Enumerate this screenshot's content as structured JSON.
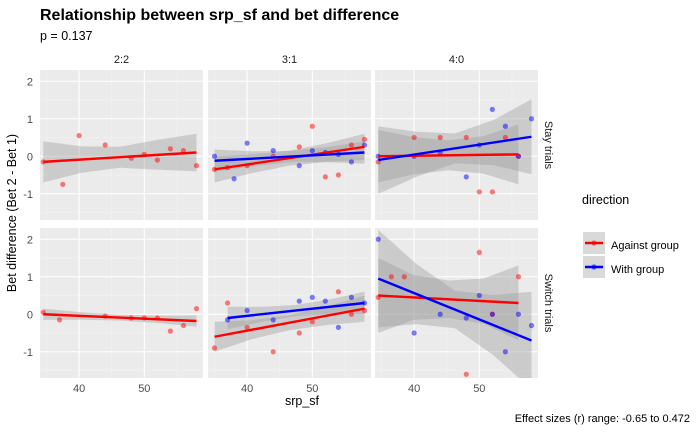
{
  "chart_data": {
    "type": "scatter",
    "title": "Relationship between srp_sf and bet difference",
    "subtitle": "p = 0.137",
    "xlabel": "srp_sf",
    "ylabel": "Bet difference (Bet 2 - Bet 1)",
    "caption": "Effect sizes (r) range: -0.65 to 0.472",
    "xlim": [
      34,
      59
    ],
    "ylim": [
      -1.7,
      2.3
    ],
    "x_ticks": [
      40,
      50
    ],
    "y_ticks": [
      -1,
      0,
      1,
      2
    ],
    "grid": true,
    "legend": {
      "title": "direction",
      "position": "right",
      "entries": [
        {
          "label": "Against group",
          "color": "#ff0000"
        },
        {
          "label": "With group",
          "color": "#0000ff"
        }
      ]
    },
    "columns": [
      "2:2",
      "3:1",
      "4:0"
    ],
    "rows": [
      "Stay trials",
      "Switch trials"
    ],
    "panels": [
      {
        "column": "2:2",
        "row": "Stay trials",
        "points": [
          {
            "d": "against",
            "x": 34.5,
            "y": -0.15
          },
          {
            "d": "against",
            "x": 37.5,
            "y": -0.75
          },
          {
            "d": "against",
            "x": 40,
            "y": 0.55
          },
          {
            "d": "against",
            "x": 44,
            "y": 0.3
          },
          {
            "d": "against",
            "x": 48,
            "y": -0.05
          },
          {
            "d": "against",
            "x": 50,
            "y": 0.05
          },
          {
            "d": "against",
            "x": 52,
            "y": -0.1
          },
          {
            "d": "against",
            "x": 54,
            "y": 0.2
          },
          {
            "d": "against",
            "x": 56,
            "y": 0.15
          },
          {
            "d": "against",
            "x": 58,
            "y": -0.25
          }
        ],
        "fits": [
          {
            "d": "against",
            "x": [
              34.5,
              58
            ],
            "y": [
              -0.15,
              0.1
            ],
            "band": [
              0.55,
              0.35,
              0.28,
              0.4,
              0.5
            ]
          }
        ]
      },
      {
        "column": "3:1",
        "row": "Stay trials",
        "points": [
          {
            "d": "against",
            "x": 35,
            "y": -0.35
          },
          {
            "d": "against",
            "x": 37,
            "y": -0.3
          },
          {
            "d": "against",
            "x": 40,
            "y": -0.25
          },
          {
            "d": "against",
            "x": 44,
            "y": 0.0
          },
          {
            "d": "against",
            "x": 48,
            "y": 0.25
          },
          {
            "d": "against",
            "x": 50,
            "y": 0.8
          },
          {
            "d": "against",
            "x": 52,
            "y": -0.55
          },
          {
            "d": "against",
            "x": 54,
            "y": -0.5
          },
          {
            "d": "against",
            "x": 56,
            "y": 0.3
          },
          {
            "d": "against",
            "x": 58,
            "y": 0.45
          },
          {
            "d": "with",
            "x": 35,
            "y": 0.0
          },
          {
            "d": "with",
            "x": 38,
            "y": -0.6
          },
          {
            "d": "with",
            "x": 40,
            "y": 0.35
          },
          {
            "d": "with",
            "x": 44,
            "y": 0.15
          },
          {
            "d": "with",
            "x": 48,
            "y": -0.25
          },
          {
            "d": "with",
            "x": 50,
            "y": 0.15
          },
          {
            "d": "with",
            "x": 52,
            "y": 0.1
          },
          {
            "d": "with",
            "x": 54,
            "y": 0.05
          },
          {
            "d": "with",
            "x": 56,
            "y": -0.15
          },
          {
            "d": "with",
            "x": 58,
            "y": 0.3
          }
        ],
        "fits": [
          {
            "d": "against",
            "x": [
              35,
              58
            ],
            "y": [
              -0.35,
              0.25
            ],
            "band": [
              0.35,
              0.25,
              0.2,
              0.25,
              0.35
            ]
          },
          {
            "d": "with",
            "x": [
              35,
              58
            ],
            "y": [
              -0.12,
              0.1
            ],
            "band": [
              0.3,
              0.2,
              0.15,
              0.2,
              0.3
            ]
          }
        ]
      },
      {
        "column": "4:0",
        "row": "Stay trials",
        "points": [
          {
            "d": "against",
            "x": 34.5,
            "y": -0.15
          },
          {
            "d": "against",
            "x": 40,
            "y": 0.5
          },
          {
            "d": "against",
            "x": 44,
            "y": 0.5
          },
          {
            "d": "against",
            "x": 48,
            "y": 0.5
          },
          {
            "d": "against",
            "x": 50,
            "y": -0.95
          },
          {
            "d": "against",
            "x": 52,
            "y": -0.95
          },
          {
            "d": "against",
            "x": 54,
            "y": 0.5
          },
          {
            "d": "against",
            "x": 56,
            "y": 0.0
          },
          {
            "d": "with",
            "x": 34.5,
            "y": 0.0
          },
          {
            "d": "with",
            "x": 40,
            "y": 0.0
          },
          {
            "d": "with",
            "x": 44,
            "y": 0.1
          },
          {
            "d": "with",
            "x": 48,
            "y": -0.55
          },
          {
            "d": "with",
            "x": 50,
            "y": 0.3
          },
          {
            "d": "with",
            "x": 52,
            "y": 1.25
          },
          {
            "d": "with",
            "x": 54,
            "y": 0.8
          },
          {
            "d": "with",
            "x": 56,
            "y": 0.0
          },
          {
            "d": "with",
            "x": 58,
            "y": 1.0
          }
        ],
        "fits": [
          {
            "d": "against",
            "x": [
              34.5,
              56
            ],
            "y": [
              0.0,
              0.05
            ],
            "band": [
              0.7,
              0.5,
              0.4,
              0.5,
              0.8
            ]
          },
          {
            "d": "with",
            "x": [
              34.5,
              58
            ],
            "y": [
              -0.1,
              0.52
            ],
            "band": [
              0.9,
              0.6,
              0.4,
              0.6,
              1.0
            ]
          }
        ]
      },
      {
        "column": "2:2",
        "row": "Switch trials",
        "points": [
          {
            "d": "against",
            "x": 34.5,
            "y": 0.05
          },
          {
            "d": "against",
            "x": 37,
            "y": -0.15
          },
          {
            "d": "against",
            "x": 44,
            "y": -0.05
          },
          {
            "d": "against",
            "x": 48,
            "y": -0.1
          },
          {
            "d": "against",
            "x": 50,
            "y": -0.1
          },
          {
            "d": "against",
            "x": 52,
            "y": -0.1
          },
          {
            "d": "against",
            "x": 54,
            "y": -0.45
          },
          {
            "d": "against",
            "x": 56,
            "y": -0.3
          },
          {
            "d": "against",
            "x": 58,
            "y": 0.15
          }
        ],
        "fits": [
          {
            "d": "against",
            "x": [
              34.5,
              58
            ],
            "y": [
              0.0,
              -0.18
            ],
            "band": [
              0.15,
              0.1,
              0.08,
              0.1,
              0.15
            ]
          }
        ]
      },
      {
        "column": "3:1",
        "row": "Switch trials",
        "points": [
          {
            "d": "against",
            "x": 35,
            "y": -0.9
          },
          {
            "d": "against",
            "x": 37,
            "y": 0.3
          },
          {
            "d": "against",
            "x": 40,
            "y": -0.35
          },
          {
            "d": "against",
            "x": 44,
            "y": -1.0
          },
          {
            "d": "against",
            "x": 48,
            "y": -0.5
          },
          {
            "d": "against",
            "x": 50,
            "y": -0.2
          },
          {
            "d": "against",
            "x": 54,
            "y": 0.6
          },
          {
            "d": "against",
            "x": 56,
            "y": 0.0
          },
          {
            "d": "against",
            "x": 58,
            "y": 0.1
          },
          {
            "d": "with",
            "x": 37,
            "y": -0.15
          },
          {
            "d": "with",
            "x": 40,
            "y": 0.1
          },
          {
            "d": "with",
            "x": 44,
            "y": -0.15
          },
          {
            "d": "with",
            "x": 48,
            "y": 0.35
          },
          {
            "d": "with",
            "x": 50,
            "y": 0.45
          },
          {
            "d": "with",
            "x": 52,
            "y": 0.35
          },
          {
            "d": "with",
            "x": 54,
            "y": -0.35
          },
          {
            "d": "with",
            "x": 56,
            "y": 0.45
          },
          {
            "d": "with",
            "x": 58,
            "y": 0.3
          }
        ],
        "fits": [
          {
            "d": "against",
            "x": [
              35,
              58
            ],
            "y": [
              -0.6,
              0.15
            ],
            "band": [
              0.4,
              0.25,
              0.2,
              0.25,
              0.35
            ]
          },
          {
            "d": "with",
            "x": [
              37,
              58
            ],
            "y": [
              -0.1,
              0.3
            ],
            "band": [
              0.3,
              0.2,
              0.15,
              0.2,
              0.3
            ]
          }
        ]
      },
      {
        "column": "4:0",
        "row": "Switch trials",
        "points": [
          {
            "d": "against",
            "x": 34.5,
            "y": 0.45
          },
          {
            "d": "against",
            "x": 36.5,
            "y": 1.0
          },
          {
            "d": "against",
            "x": 38.5,
            "y": 1.0
          },
          {
            "d": "against",
            "x": 48,
            "y": -1.6
          },
          {
            "d": "against",
            "x": 50,
            "y": 1.65
          },
          {
            "d": "against",
            "x": 52,
            "y": 0.0
          },
          {
            "d": "against",
            "x": 56,
            "y": 1.0
          },
          {
            "d": "with",
            "x": 34.5,
            "y": 2.0
          },
          {
            "d": "with",
            "x": 40,
            "y": -0.5
          },
          {
            "d": "with",
            "x": 44,
            "y": 0.0
          },
          {
            "d": "with",
            "x": 48,
            "y": -0.1
          },
          {
            "d": "with",
            "x": 50,
            "y": 0.5
          },
          {
            "d": "with",
            "x": 52,
            "y": 0.0
          },
          {
            "d": "with",
            "x": 54,
            "y": -1.0
          },
          {
            "d": "with",
            "x": 56,
            "y": 0.0
          },
          {
            "d": "with",
            "x": 58,
            "y": -0.3
          }
        ],
        "fits": [
          {
            "d": "against",
            "x": [
              34.5,
              56
            ],
            "y": [
              0.5,
              0.3
            ],
            "band": [
              1.0,
              0.6,
              0.5,
              0.6,
              1.0
            ]
          },
          {
            "d": "with",
            "x": [
              34.5,
              58
            ],
            "y": [
              0.95,
              -0.7
            ],
            "band": [
              1.3,
              0.8,
              0.5,
              0.8,
              1.3
            ]
          }
        ]
      }
    ]
  },
  "colors": {
    "against": "#ff0000",
    "with": "#0000ff",
    "panel_bg": "#ebebeb",
    "band": "#999999",
    "grid": "#ffffff"
  }
}
